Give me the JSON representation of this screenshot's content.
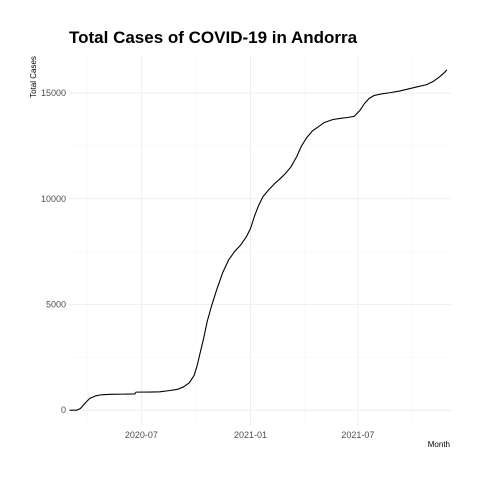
{
  "chart_data": {
    "type": "line",
    "title": "Total Cases of COVID-19 in Andorra",
    "xlabel": "Month",
    "ylabel": "Total Cases",
    "x_range": [
      "2020-03-01",
      "2021-12-05"
    ],
    "ylim": [
      -700,
      16800
    ],
    "x_ticks": [
      {
        "date": "2020-07-01",
        "label": "2020-07"
      },
      {
        "date": "2021-01-01",
        "label": "2021-01"
      },
      {
        "date": "2021-07-01",
        "label": "2021-07"
      }
    ],
    "y_ticks": [
      0,
      5000,
      10000,
      15000
    ],
    "y_tick_labels": [
      "0",
      "5000",
      "10000",
      "15000"
    ],
    "grid": true,
    "series": [
      {
        "points": [
          [
            "2020-03-02",
            1
          ],
          [
            "2020-03-14",
            1
          ],
          [
            "2020-03-20",
            75
          ],
          [
            "2020-03-28",
            330
          ],
          [
            "2020-04-05",
            560
          ],
          [
            "2020-04-15",
            680
          ],
          [
            "2020-04-25",
            730
          ],
          [
            "2020-05-10",
            750
          ],
          [
            "2020-06-01",
            760
          ],
          [
            "2020-06-20",
            770
          ],
          [
            "2020-06-22",
            855
          ],
          [
            "2020-07-15",
            860
          ],
          [
            "2020-08-01",
            870
          ],
          [
            "2020-08-15",
            920
          ],
          [
            "2020-08-30",
            980
          ],
          [
            "2020-09-10",
            1100
          ],
          [
            "2020-09-20",
            1300
          ],
          [
            "2020-09-28",
            1650
          ],
          [
            "2020-10-03",
            2100
          ],
          [
            "2020-10-08",
            2700
          ],
          [
            "2020-10-14",
            3400
          ],
          [
            "2020-10-20",
            4200
          ],
          [
            "2020-10-27",
            4900
          ],
          [
            "2020-11-05",
            5700
          ],
          [
            "2020-11-15",
            6500
          ],
          [
            "2020-11-25",
            7100
          ],
          [
            "2020-12-05",
            7500
          ],
          [
            "2020-12-15",
            7800
          ],
          [
            "2020-12-25",
            8200
          ],
          [
            "2021-01-01",
            8600
          ],
          [
            "2021-01-08",
            9200
          ],
          [
            "2021-01-15",
            9700
          ],
          [
            "2021-01-22",
            10100
          ],
          [
            "2021-01-31",
            10400
          ],
          [
            "2021-02-10",
            10700
          ],
          [
            "2021-02-20",
            10950
          ],
          [
            "2021-03-01",
            11200
          ],
          [
            "2021-03-10",
            11500
          ],
          [
            "2021-03-20",
            12000
          ],
          [
            "2021-03-28",
            12500
          ],
          [
            "2021-04-06",
            12900
          ],
          [
            "2021-04-15",
            13200
          ],
          [
            "2021-04-25",
            13400
          ],
          [
            "2021-05-05",
            13600
          ],
          [
            "2021-05-20",
            13750
          ],
          [
            "2021-06-01",
            13800
          ],
          [
            "2021-06-15",
            13850
          ],
          [
            "2021-06-25",
            13900
          ],
          [
            "2021-07-05",
            14200
          ],
          [
            "2021-07-12",
            14500
          ],
          [
            "2021-07-20",
            14750
          ],
          [
            "2021-07-28",
            14880
          ],
          [
            "2021-08-10",
            14960
          ],
          [
            "2021-08-25",
            15020
          ],
          [
            "2021-09-10",
            15100
          ],
          [
            "2021-09-25",
            15200
          ],
          [
            "2021-10-10",
            15300
          ],
          [
            "2021-10-25",
            15400
          ],
          [
            "2021-11-05",
            15550
          ],
          [
            "2021-11-15",
            15750
          ],
          [
            "2021-11-25",
            16000
          ],
          [
            "2021-11-28",
            16100
          ]
        ]
      }
    ]
  }
}
